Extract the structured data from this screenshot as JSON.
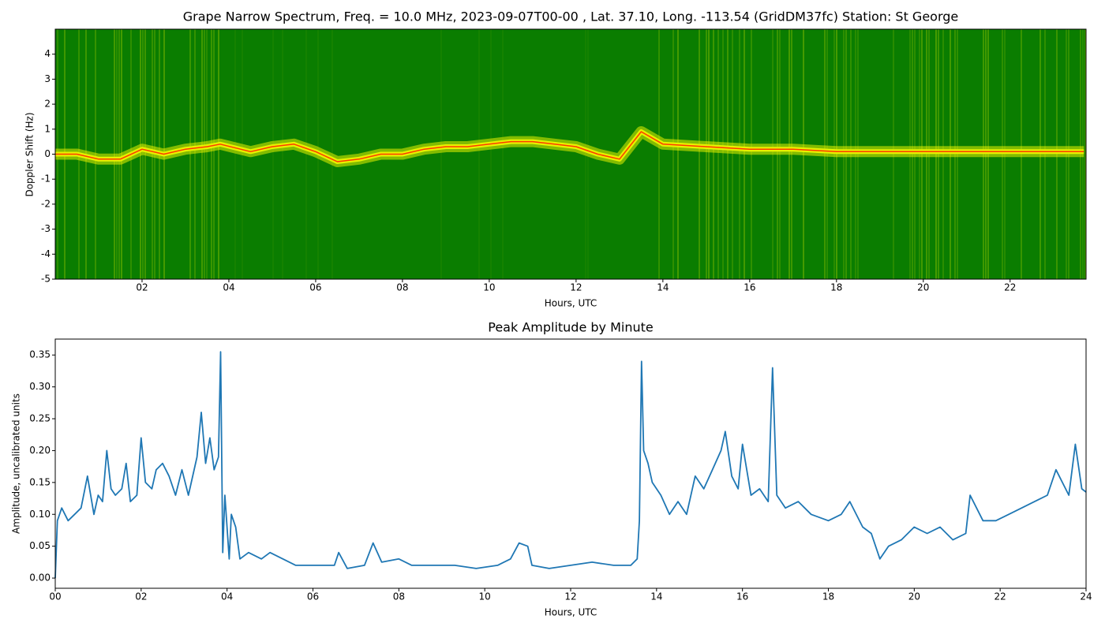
{
  "chart_data": [
    {
      "type": "spectrogram",
      "title": "Grape Narrow Spectrum, Freq. = 10.0 MHz, 2023-09-07T00-00 , Lat.  37.10, Long. -113.54 (GridDM37fc) Station: St George",
      "xlabel": "Hours, UTC",
      "ylabel": "Doppler Shift (Hz)",
      "xlim": [
        0,
        23.75
      ],
      "ylim": [
        -5,
        5
      ],
      "xticks": [
        {
          "value": 2,
          "label": "02"
        },
        {
          "value": 4,
          "label": "04"
        },
        {
          "value": 6,
          "label": "06"
        },
        {
          "value": 8,
          "label": "08"
        },
        {
          "value": 10,
          "label": "10"
        },
        {
          "value": 12,
          "label": "12"
        },
        {
          "value": 14,
          "label": "14"
        },
        {
          "value": 16,
          "label": "16"
        },
        {
          "value": 18,
          "label": "18"
        },
        {
          "value": 20,
          "label": "20"
        },
        {
          "value": 22,
          "label": "22"
        }
      ],
      "yticks": [
        -5,
        -4,
        -3,
        -2,
        -1,
        0,
        1,
        2,
        3,
        4
      ],
      "background_color": "#0a7d00",
      "glow_color": "#e8f000",
      "x": [
        0,
        0.5,
        1,
        1.5,
        2,
        2.5,
        3,
        3.5,
        3.8,
        4.5,
        5,
        5.5,
        6,
        6.5,
        7,
        7.5,
        8,
        8.5,
        9,
        9.5,
        10,
        10.5,
        11,
        11.5,
        12,
        12.5,
        13,
        13.5,
        14,
        15,
        16,
        17,
        18,
        19,
        20,
        21,
        22,
        23,
        23.7
      ],
      "series": [
        {
          "color": "#ff3a00",
          "values": [
            0,
            0,
            -0.2,
            -0.2,
            0.2,
            0,
            0.2,
            0.3,
            0.4,
            0.1,
            0.3,
            0.4,
            0.1,
            -0.3,
            -0.2,
            0,
            0,
            0.2,
            0.3,
            0.3,
            0.4,
            0.5,
            0.5,
            0.4,
            0.3,
            0,
            -0.2,
            0.9,
            0.4,
            0.3,
            0.2,
            0.2,
            0.1,
            0.1,
            0.1,
            0.1,
            0.1,
            0.1,
            0.1
          ]
        }
      ]
    },
    {
      "type": "line",
      "title": "Peak Amplitude by Minute",
      "xlabel": "Hours, UTC",
      "ylabel": "Amplitude, uncalibrated units",
      "xlim": [
        0,
        24
      ],
      "ylim": [
        -0.016,
        0.375
      ],
      "xticks": [
        {
          "value": 0,
          "label": "00"
        },
        {
          "value": 2,
          "label": "02"
        },
        {
          "value": 4,
          "label": "04"
        },
        {
          "value": 6,
          "label": "06"
        },
        {
          "value": 8,
          "label": "08"
        },
        {
          "value": 10,
          "label": "10"
        },
        {
          "value": 12,
          "label": "12"
        },
        {
          "value": 14,
          "label": "14"
        },
        {
          "value": 16,
          "label": "16"
        },
        {
          "value": 18,
          "label": "18"
        },
        {
          "value": 20,
          "label": "20"
        },
        {
          "value": 22,
          "label": "22"
        },
        {
          "value": 24,
          "label": "24"
        }
      ],
      "yticks": [
        {
          "value": 0,
          "label": "0.00"
        },
        0.05,
        {
          "value": 0.1,
          "label": "0.10"
        },
        0.15,
        {
          "value": 0.2,
          "label": "0.20"
        },
        0.25,
        {
          "value": 0.3,
          "label": "0.30"
        },
        0.35
      ],
      "x": [
        0,
        0.05,
        0.15,
        0.3,
        0.45,
        0.6,
        0.75,
        0.9,
        1.0,
        1.1,
        1.2,
        1.3,
        1.4,
        1.55,
        1.65,
        1.75,
        1.9,
        2.0,
        2.1,
        2.25,
        2.35,
        2.5,
        2.65,
        2.8,
        2.95,
        3.1,
        3.3,
        3.4,
        3.5,
        3.6,
        3.7,
        3.8,
        3.85,
        3.9,
        3.95,
        4.05,
        4.1,
        4.2,
        4.3,
        4.5,
        4.8,
        5.0,
        5.3,
        5.6,
        6.0,
        6.5,
        6.6,
        6.8,
        7.2,
        7.4,
        7.6,
        8.0,
        8.3,
        8.8,
        9.3,
        9.8,
        10.3,
        10.6,
        10.8,
        11.0,
        11.1,
        11.5,
        12.0,
        12.5,
        13.0,
        13.4,
        13.55,
        13.6,
        13.65,
        13.7,
        13.8,
        13.9,
        14.1,
        14.3,
        14.5,
        14.7,
        14.9,
        15.1,
        15.3,
        15.5,
        15.6,
        15.75,
        15.9,
        16.0,
        16.2,
        16.4,
        16.6,
        16.7,
        16.8,
        17.0,
        17.3,
        17.6,
        18.0,
        18.3,
        18.5,
        18.8,
        19.0,
        19.2,
        19.4,
        19.7,
        20.0,
        20.3,
        20.6,
        20.9,
        21.2,
        21.3,
        21.6,
        21.9,
        22.2,
        22.5,
        22.8,
        23.1,
        23.3,
        23.6,
        23.75,
        23.9,
        24.0
      ],
      "series": [
        {
          "color": "#1f77b4",
          "values": [
            0.0,
            0.09,
            0.11,
            0.09,
            0.1,
            0.11,
            0.16,
            0.1,
            0.13,
            0.12,
            0.2,
            0.14,
            0.13,
            0.14,
            0.18,
            0.12,
            0.13,
            0.22,
            0.15,
            0.14,
            0.17,
            0.18,
            0.16,
            0.13,
            0.17,
            0.13,
            0.19,
            0.26,
            0.18,
            0.22,
            0.17,
            0.19,
            0.355,
            0.04,
            0.13,
            0.03,
            0.1,
            0.08,
            0.03,
            0.04,
            0.03,
            0.04,
            0.03,
            0.02,
            0.02,
            0.02,
            0.04,
            0.015,
            0.02,
            0.055,
            0.025,
            0.03,
            0.02,
            0.02,
            0.02,
            0.015,
            0.02,
            0.03,
            0.055,
            0.05,
            0.02,
            0.015,
            0.02,
            0.025,
            0.02,
            0.02,
            0.03,
            0.09,
            0.34,
            0.2,
            0.18,
            0.15,
            0.13,
            0.1,
            0.12,
            0.1,
            0.16,
            0.14,
            0.17,
            0.2,
            0.23,
            0.16,
            0.14,
            0.21,
            0.13,
            0.14,
            0.12,
            0.33,
            0.13,
            0.11,
            0.12,
            0.1,
            0.09,
            0.1,
            0.12,
            0.08,
            0.07,
            0.03,
            0.05,
            0.06,
            0.08,
            0.07,
            0.08,
            0.06,
            0.07,
            0.13,
            0.09,
            0.09,
            0.1,
            0.11,
            0.12,
            0.13,
            0.17,
            0.13,
            0.21,
            0.14,
            0.135
          ]
        }
      ]
    }
  ]
}
